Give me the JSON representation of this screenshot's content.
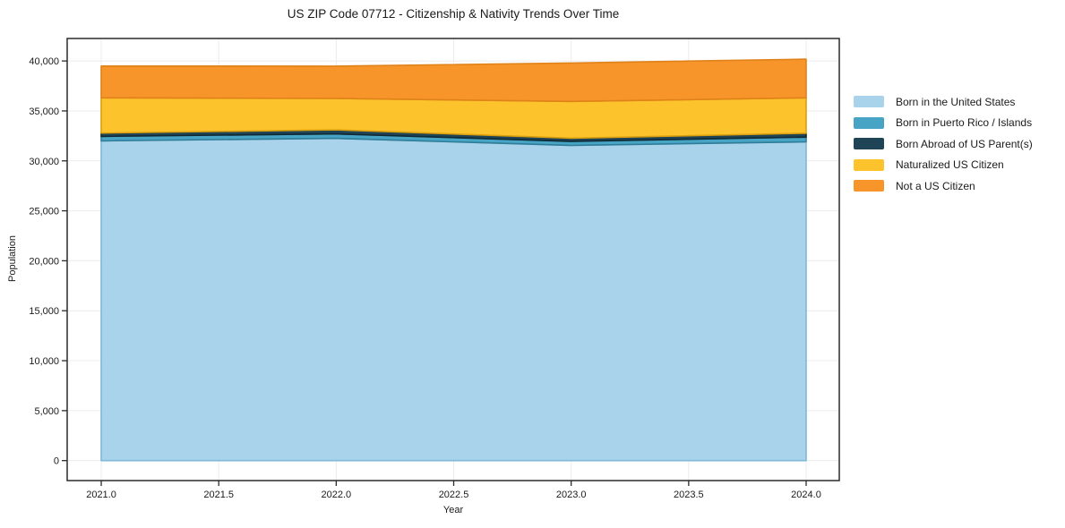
{
  "chart_data": {
    "type": "area",
    "stacked": true,
    "title": "US ZIP Code 07712 - Citizenship & Nativity Trends Over Time",
    "xlabel": "Year",
    "ylabel": "Population",
    "x": [
      2021,
      2022,
      2023,
      2024
    ],
    "series": [
      {
        "name": "Born in the United States",
        "color": "#a8d3ea",
        "edge": "#7fb9d8",
        "values": [
          32000,
          32250,
          31550,
          31900
        ]
      },
      {
        "name": "Born in Puerto Rico / Islands",
        "color": "#47a4c4",
        "edge": "#2f7d99",
        "values": [
          450,
          450,
          400,
          480
        ]
      },
      {
        "name": "Born Abroad of US Parent(s)",
        "color": "#1f4456",
        "edge": "#0f2935",
        "values": [
          330,
          400,
          320,
          380
        ]
      },
      {
        "name": "Naturalized US Citizen",
        "color": "#fcc32c",
        "edge": "#dba00f",
        "values": [
          3530,
          3150,
          3680,
          3550
        ]
      },
      {
        "name": "Not a US Citizen",
        "color": "#f7952a",
        "edge": "#e0821a",
        "values": [
          3180,
          3230,
          3850,
          3870
        ]
      }
    ],
    "totals": [
      39490,
      39480,
      39800,
      40180
    ],
    "xticks": [
      2021.0,
      2021.5,
      2022.0,
      2022.5,
      2023.0,
      2023.5,
      2024.0
    ],
    "xtick_labels": [
      "2021.0",
      "2021.5",
      "2022.0",
      "2022.5",
      "2023.0",
      "2023.5",
      "2024.0"
    ],
    "yticks": [
      0,
      5000,
      10000,
      15000,
      20000,
      25000,
      30000,
      35000,
      40000
    ],
    "ytick_labels": [
      "0",
      "5,000",
      "10,000",
      "15,000",
      "20,000",
      "25,000",
      "30,000",
      "35,000",
      "40,000"
    ],
    "xlim": [
      2020.855,
      2024.141
    ],
    "ylim": [
      -2000,
      42250
    ],
    "grid": true,
    "grid_color": "#ececec",
    "axis_color": "#2b2b2b",
    "background_color": "#ffffff",
    "legend_position": "right"
  }
}
